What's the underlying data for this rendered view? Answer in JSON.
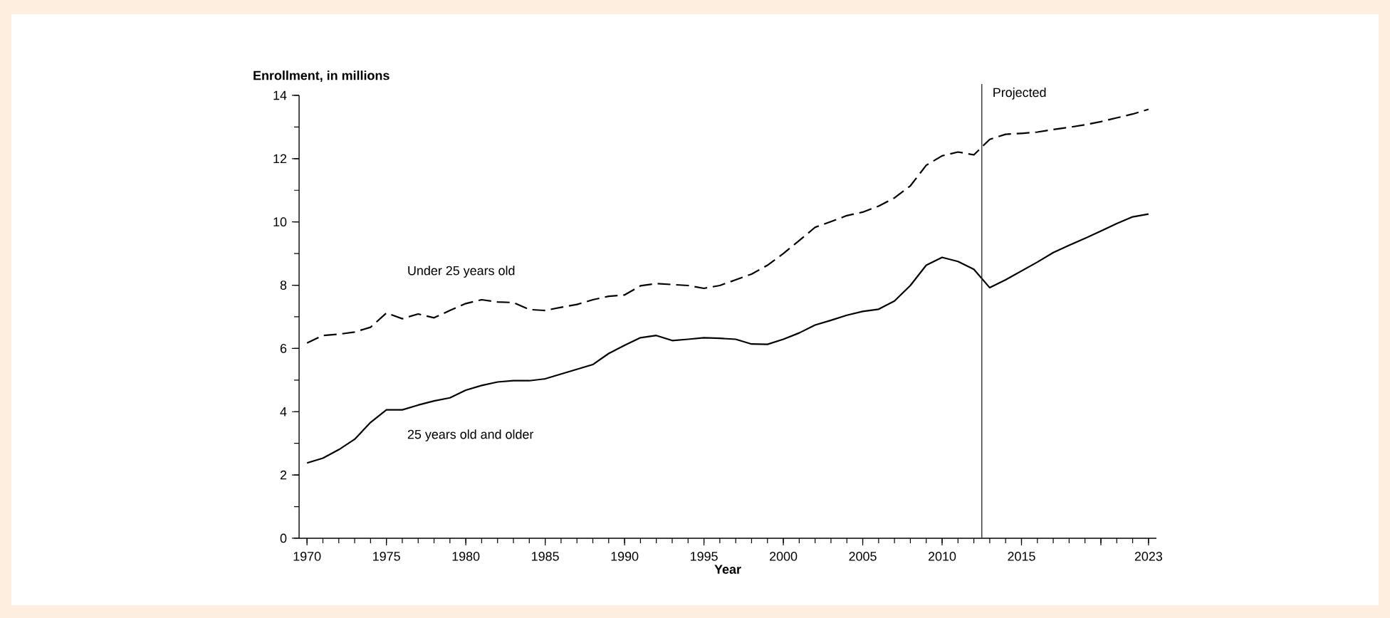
{
  "chart_data": {
    "type": "line",
    "xlabel": "Year",
    "ylabel": "Enrollment, in millions",
    "x": [
      1970,
      1971,
      1972,
      1973,
      1974,
      1975,
      1976,
      1977,
      1978,
      1979,
      1980,
      1981,
      1982,
      1983,
      1984,
      1985,
      1986,
      1987,
      1988,
      1989,
      1990,
      1991,
      1992,
      1993,
      1994,
      1995,
      1996,
      1997,
      1998,
      1999,
      2000,
      2001,
      2002,
      2003,
      2004,
      2005,
      2006,
      2007,
      2008,
      2009,
      2010,
      2011,
      2012,
      2013,
      2014,
      2015,
      2016,
      2017,
      2018,
      2019,
      2020,
      2021,
      2022,
      2023
    ],
    "series": [
      {
        "name": "Under 25 years old",
        "color": "#000000",
        "line_style": "dashed",
        "values": [
          6.17,
          6.41,
          6.45,
          6.52,
          6.67,
          7.12,
          6.94,
          7.09,
          6.97,
          7.2,
          7.42,
          7.54,
          7.47,
          7.45,
          7.23,
          7.2,
          7.3,
          7.39,
          7.54,
          7.65,
          7.69,
          7.98,
          8.05,
          8.02,
          7.99,
          7.9,
          7.99,
          8.17,
          8.35,
          8.63,
          9.0,
          9.41,
          9.83,
          10.01,
          10.2,
          10.31,
          10.5,
          10.76,
          11.14,
          11.79,
          12.09,
          12.21,
          12.12,
          12.61,
          12.77,
          12.8,
          12.84,
          12.92,
          12.99,
          13.07,
          13.17,
          13.29,
          13.41,
          13.56
        ]
      },
      {
        "name": "25 years old and older",
        "color": "#000000",
        "line_style": "solid",
        "values": [
          2.38,
          2.53,
          2.8,
          3.13,
          3.66,
          4.06,
          4.06,
          4.21,
          4.34,
          4.44,
          4.68,
          4.83,
          4.94,
          4.98,
          4.98,
          5.04,
          5.19,
          5.34,
          5.49,
          5.84,
          6.1,
          6.34,
          6.41,
          6.25,
          6.29,
          6.34,
          6.32,
          6.29,
          6.14,
          6.13,
          6.29,
          6.49,
          6.74,
          6.89,
          7.05,
          7.17,
          7.24,
          7.5,
          7.99,
          8.63,
          8.88,
          8.75,
          8.5,
          7.92,
          8.17,
          8.45,
          8.73,
          9.03,
          9.26,
          9.48,
          9.71,
          9.95,
          10.16,
          10.25
        ]
      }
    ],
    "xlim": [
      1969.5,
      2023.5
    ],
    "xticks": [
      1970,
      1975,
      1980,
      1985,
      1990,
      1995,
      2000,
      2005,
      2010,
      2015,
      {
        "value": 2020,
        "label": null
      },
      2023
    ],
    "ylim": [
      0,
      14
    ],
    "yticks": [
      0,
      2,
      4,
      6,
      8,
      10,
      12,
      14
    ],
    "ref_lines": [
      {
        "axis": "x",
        "value": 2012.5,
        "label": "Projected",
        "color": "#333333"
      }
    ],
    "grid": false,
    "legend": false,
    "marker": "none"
  }
}
